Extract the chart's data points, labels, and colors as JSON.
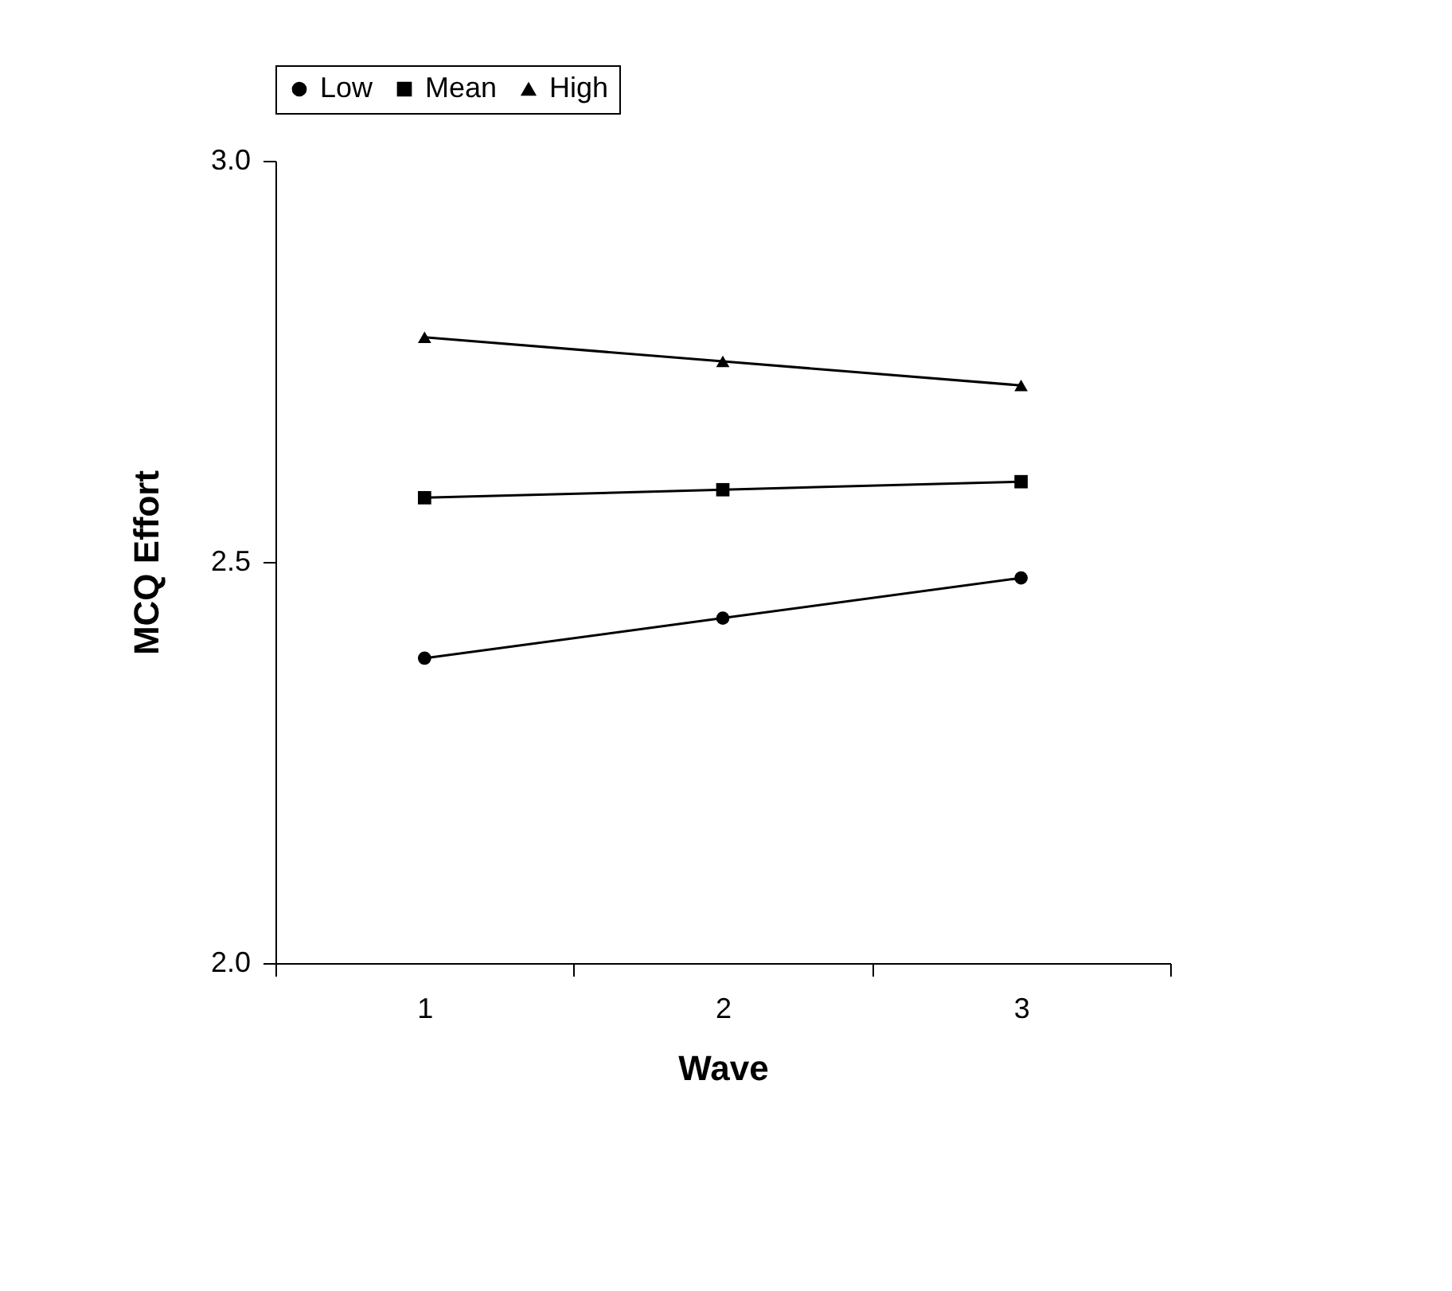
{
  "chart_data": {
    "type": "line",
    "xlabel": "Wave",
    "ylabel": "MCQ Effort",
    "categories": [
      "1",
      "2",
      "3"
    ],
    "ylim": [
      2.0,
      3.0
    ],
    "yticks": [
      {
        "value": 2.0,
        "label": "2.0"
      },
      {
        "value": 2.5,
        "label": "2.5"
      },
      {
        "value": 3.0,
        "label": "3.0"
      }
    ],
    "grid": false,
    "legend": "top",
    "line_style": "solid",
    "series": [
      {
        "name": "Low",
        "color": "#000000",
        "marker": "circle",
        "values": [
          2.38,
          2.43,
          2.48
        ]
      },
      {
        "name": "Mean",
        "color": "#000000",
        "marker": "square",
        "values": [
          2.58,
          2.59,
          2.6
        ]
      },
      {
        "name": "High",
        "color": "#000000",
        "marker": "triangle",
        "values": [
          2.78,
          2.75,
          2.72
        ]
      }
    ]
  }
}
